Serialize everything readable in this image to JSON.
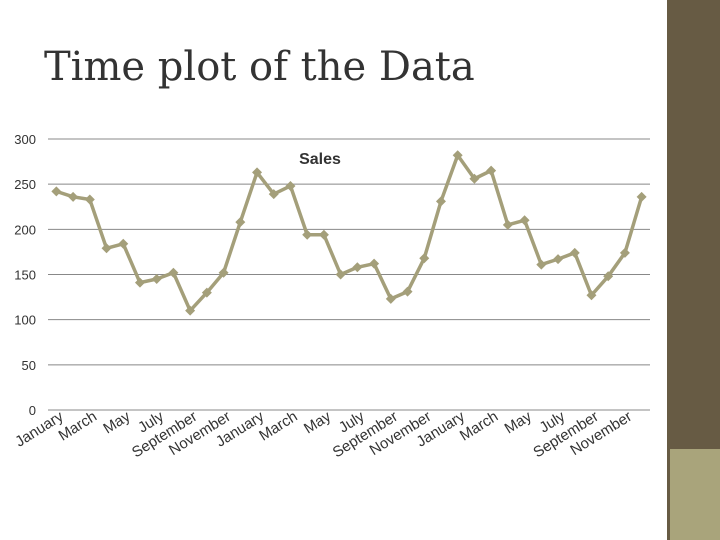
{
  "slide": {
    "title": "Time plot of the Data",
    "colors": {
      "sidebar": "#675b44",
      "sidebar_accent": "#a9a47b",
      "series": "#a49f7a",
      "gridline": "#888888",
      "text": "#333333"
    }
  },
  "chart_data": {
    "type": "line",
    "title": "Sales",
    "ylim": [
      0,
      300
    ],
    "yticks": [
      0,
      50,
      100,
      150,
      200,
      250,
      300
    ],
    "grid": "horizontal",
    "categories": [
      "January",
      "",
      "March",
      "",
      "May",
      "",
      "July",
      "",
      "September",
      "",
      "November",
      "",
      "January",
      "",
      "March",
      "",
      "May",
      "",
      "July",
      "",
      "September",
      "",
      "November",
      "",
      "January",
      "",
      "March",
      "",
      "May",
      "",
      "July",
      "",
      "September",
      "",
      "November",
      ""
    ],
    "series": [
      {
        "name": "Sales",
        "color": "#a49f7a",
        "values": [
          242,
          236,
          233,
          179,
          184,
          141,
          145,
          152,
          110,
          130,
          152,
          208,
          263,
          239,
          248,
          194,
          194,
          150,
          158,
          162,
          123,
          131,
          168,
          231,
          282,
          256,
          265,
          205,
          210,
          161,
          167,
          174,
          127,
          148,
          174,
          236
        ]
      }
    ]
  }
}
